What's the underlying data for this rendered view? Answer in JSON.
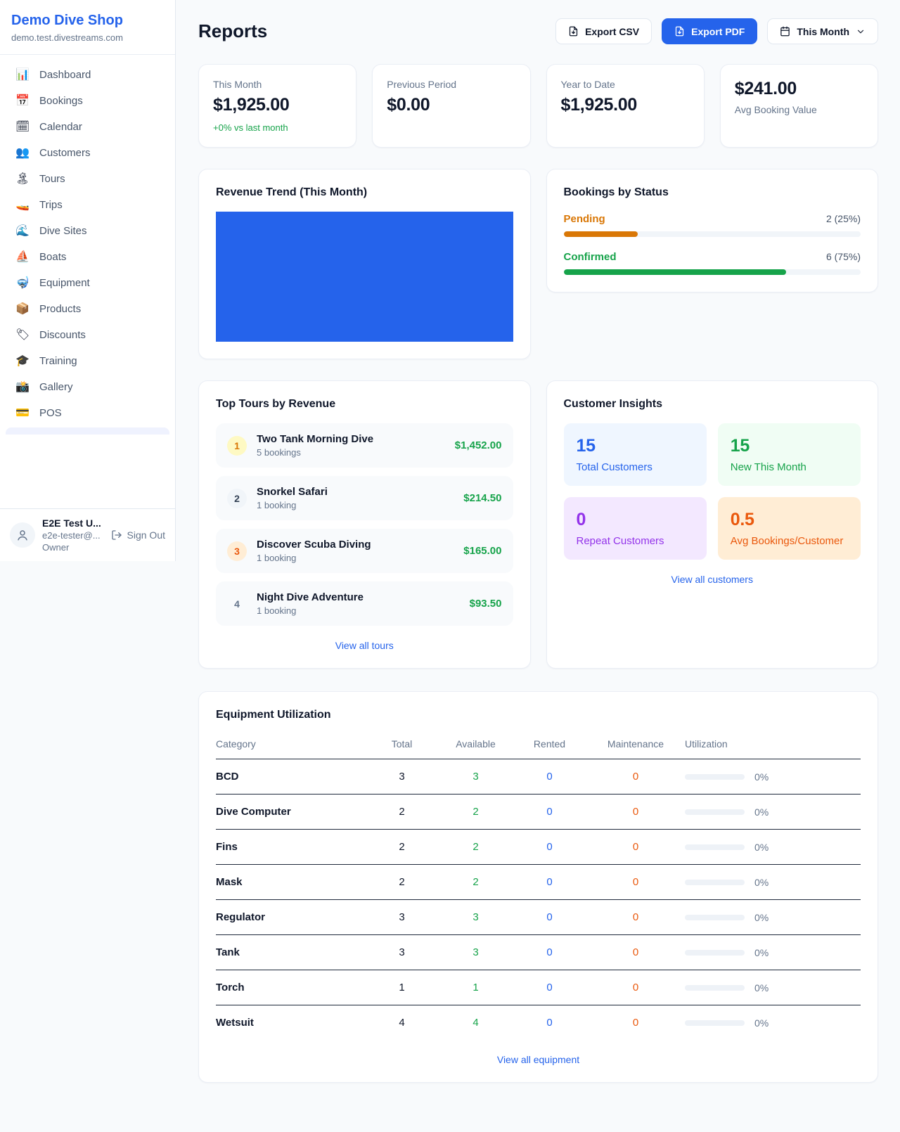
{
  "sidebar": {
    "title": "Demo Dive Shop",
    "subtitle": "demo.test.divestreams.com",
    "items": [
      {
        "name": "dashboard",
        "icon": "📊",
        "label": "Dashboard"
      },
      {
        "name": "bookings",
        "icon": "📅",
        "label": "Bookings"
      },
      {
        "name": "calendar",
        "icon": "🗓",
        "label": "Calendar"
      },
      {
        "name": "customers",
        "icon": "👥",
        "label": "Customers"
      },
      {
        "name": "tours",
        "icon": "🏝",
        "label": "Tours"
      },
      {
        "name": "trips",
        "icon": "🚤",
        "label": "Trips"
      },
      {
        "name": "dive-sites",
        "icon": "🌊",
        "label": "Dive Sites"
      },
      {
        "name": "boats",
        "icon": "⛵",
        "label": "Boats"
      },
      {
        "name": "equipment",
        "icon": "🤿",
        "label": "Equipment"
      },
      {
        "name": "products",
        "icon": "📦",
        "label": "Products"
      },
      {
        "name": "discounts",
        "icon": "🏷",
        "label": "Discounts"
      },
      {
        "name": "training",
        "icon": "🎓",
        "label": "Training"
      },
      {
        "name": "gallery",
        "icon": "📸",
        "label": "Gallery"
      },
      {
        "name": "pos",
        "icon": "💳",
        "label": "POS"
      }
    ],
    "user": {
      "name": "E2E Test U...",
      "email": "e2e-tester@...",
      "role": "Owner",
      "signout": "Sign Out"
    }
  },
  "header": {
    "title": "Reports",
    "export_csv": "Export CSV",
    "export_pdf": "Export PDF",
    "period": "This Month"
  },
  "stats": [
    {
      "label": "This Month",
      "value": "$1,925.00",
      "delta": "+0% vs last month"
    },
    {
      "label": "Previous Period",
      "value": "$0.00"
    },
    {
      "label": "Year to Date",
      "value": "$1,925.00"
    },
    {
      "label": "Avg Booking Value",
      "value": "$241.00",
      "value_first": true
    }
  ],
  "revenue_trend": {
    "title": "Revenue Trend (This Month)",
    "bar_color": "#2563eb"
  },
  "bookings_by_status": {
    "title": "Bookings by Status",
    "rows": [
      {
        "label": "Pending",
        "value": "2 (25%)",
        "pct": 25,
        "color": "#d97706"
      },
      {
        "label": "Confirmed",
        "value": "6 (75%)",
        "pct": 75,
        "color": "#16a34a"
      }
    ]
  },
  "top_tours": {
    "title": "Top Tours by Revenue",
    "link": "View all tours",
    "items": [
      {
        "rank": "1",
        "name": "Two Tank Morning Dive",
        "bookings": "5 bookings",
        "amount": "$1,452.00",
        "badge_bg": "#fef9c3",
        "badge_color": "#d97706"
      },
      {
        "rank": "2",
        "name": "Snorkel Safari",
        "bookings": "1 booking",
        "amount": "$214.50",
        "badge_bg": "#f1f5f9",
        "badge_color": "#334155"
      },
      {
        "rank": "3",
        "name": "Discover Scuba Diving",
        "bookings": "1 booking",
        "amount": "$165.00",
        "badge_bg": "#ffedd5",
        "badge_color": "#ea580c"
      },
      {
        "rank": "4",
        "name": "Night Dive Adventure",
        "bookings": "1 booking",
        "amount": "$93.50",
        "badge_bg": "transparent",
        "badge_color": "#64748b"
      }
    ]
  },
  "customer_insights": {
    "title": "Customer Insights",
    "link": "View all customers",
    "tiles": [
      {
        "value": "15",
        "label": "Total Customers",
        "bg": "#eff6ff",
        "color": "#2563eb"
      },
      {
        "value": "15",
        "label": "New This Month",
        "bg": "#f0fdf4",
        "color": "#16a34a"
      },
      {
        "value": "0",
        "label": "Repeat Customers",
        "bg": "#f3e8ff",
        "color": "#9333ea"
      },
      {
        "value": "0.5",
        "label": "Avg Bookings/Customer",
        "bg": "#ffedd5",
        "color": "#ea580c"
      }
    ]
  },
  "equipment": {
    "title": "Equipment Utilization",
    "link": "View all equipment",
    "columns": [
      "Category",
      "Total",
      "Available",
      "Rented",
      "Maintenance",
      "Utilization"
    ],
    "rows": [
      {
        "category": "BCD",
        "total": "3",
        "available": "3",
        "rented": "0",
        "maintenance": "0",
        "utilization": "0%"
      },
      {
        "category": "Dive Computer",
        "total": "2",
        "available": "2",
        "rented": "0",
        "maintenance": "0",
        "utilization": "0%"
      },
      {
        "category": "Fins",
        "total": "2",
        "available": "2",
        "rented": "0",
        "maintenance": "0",
        "utilization": "0%"
      },
      {
        "category": "Mask",
        "total": "2",
        "available": "2",
        "rented": "0",
        "maintenance": "0",
        "utilization": "0%"
      },
      {
        "category": "Regulator",
        "total": "3",
        "available": "3",
        "rented": "0",
        "maintenance": "0",
        "utilization": "0%"
      },
      {
        "category": "Tank",
        "total": "3",
        "available": "3",
        "rented": "0",
        "maintenance": "0",
        "utilization": "0%"
      },
      {
        "category": "Torch",
        "total": "1",
        "available": "1",
        "rented": "0",
        "maintenance": "0",
        "utilization": "0%"
      },
      {
        "category": "Wetsuit",
        "total": "4",
        "available": "4",
        "rented": "0",
        "maintenance": "0",
        "utilization": "0%"
      }
    ]
  }
}
